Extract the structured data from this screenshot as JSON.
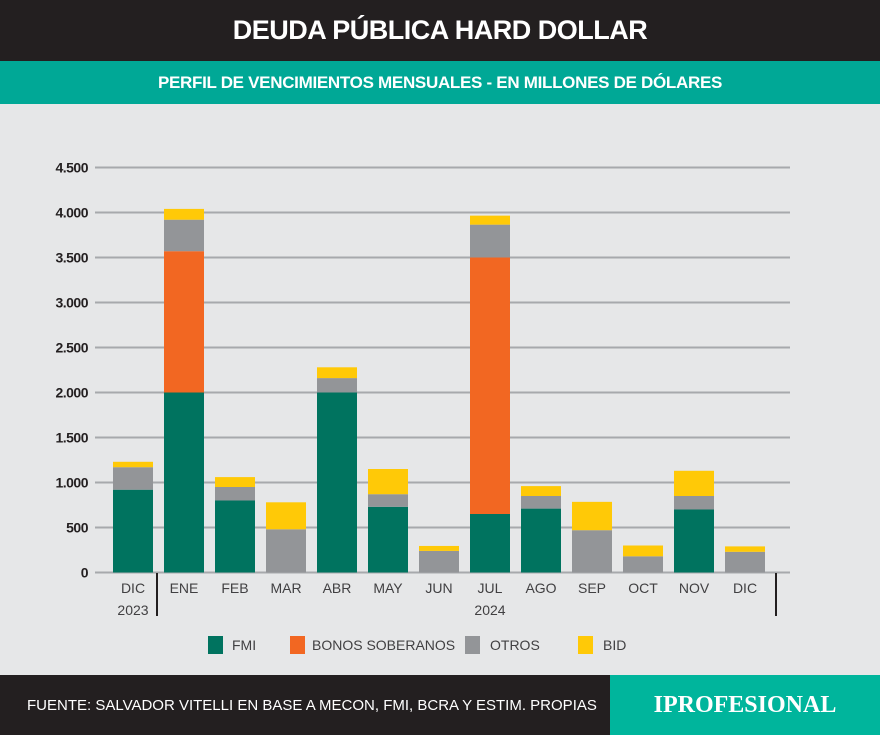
{
  "header": {
    "title": "DEUDA PÚBLICA HARD DOLLAR",
    "subtitle": "PERFIL DE VENCIMIENTOS MENSUALES - EN MILLONES DE DÓLARES"
  },
  "footer": {
    "source": "FUENTE:  SALVADOR VITELLI EN BASE A MECON, FMI, BCRA Y ESTIM. PROPIAS",
    "logo": "IPROFESIONAL"
  },
  "chart_data": {
    "type": "bar",
    "stacked": true,
    "title": "PERFIL DE VENCIMIENTOS MENSUALES - EN MILLONES DE DÓLARES",
    "categories": [
      "DIC",
      "ENE",
      "FEB",
      "MAR",
      "ABR",
      "MAY",
      "JUN",
      "JUL",
      "AGO",
      "SEP",
      "OCT",
      "NOV",
      "DIC"
    ],
    "year_groups": [
      {
        "label": "2023",
        "from": 0,
        "to": 0
      },
      {
        "label": "2024",
        "from": 1,
        "to": 12
      }
    ],
    "yticks": [
      0,
      500,
      1000,
      1500,
      2000,
      2500,
      3000,
      3500,
      4000,
      4500
    ],
    "ytick_labels": [
      "0",
      "500",
      "1.000",
      "1.500",
      "2.000",
      "2.500",
      "3.000",
      "3.500",
      "4.000",
      "4.500"
    ],
    "ylim": [
      0,
      4500
    ],
    "grid": true,
    "legend_position": "bottom",
    "series": [
      {
        "name": "FMI",
        "color": "#00735f",
        "values": [
          920,
          2000,
          800,
          0,
          2000,
          730,
          0,
          650,
          710,
          0,
          0,
          700,
          0
        ]
      },
      {
        "name": "BONOS  SOBERANOS",
        "color": "#f26722",
        "values": [
          0,
          1570,
          0,
          0,
          0,
          0,
          0,
          2850,
          0,
          0,
          0,
          0,
          0
        ]
      },
      {
        "name": "OTROS",
        "color": "#939598",
        "values": [
          250,
          350,
          150,
          480,
          160,
          140,
          240,
          365,
          140,
          470,
          180,
          150,
          230
        ]
      },
      {
        "name": "BID",
        "color": "#ffc907",
        "values": [
          60,
          120,
          110,
          300,
          120,
          280,
          55,
          100,
          110,
          315,
          120,
          280,
          60
        ]
      }
    ]
  }
}
